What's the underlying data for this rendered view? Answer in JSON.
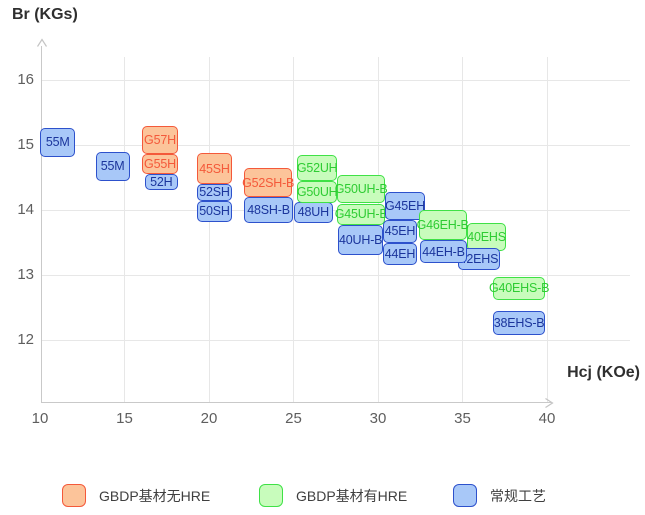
{
  "chart_data": {
    "type": "scatter",
    "mark_style": "labeled-range-boxes",
    "title": "",
    "axes": {
      "x": {
        "label": "Hcj (KOe)",
        "ticks": [
          10,
          15,
          20,
          25,
          30,
          35,
          40
        ],
        "range": [
          10,
          40
        ]
      },
      "y": {
        "label": "Br (KGs)",
        "ticks": [
          12,
          13,
          14,
          15,
          16
        ],
        "range": [
          12,
          16
        ]
      }
    },
    "grid": true,
    "series_meta": {
      "orange": {
        "legend": "GBDP基材无HRE",
        "fill": "#fcc49a",
        "border": "#f4593a",
        "text": "#f4593a"
      },
      "green": {
        "legend": "GBDP基材有HRE",
        "fill": "#c8fcbc",
        "border": "#3fe146",
        "text": "#2ecc33"
      },
      "conv": {
        "legend": "常规工艺",
        "fill": "#a8c8f8",
        "border": "#2d51cc",
        "text": "#1b359c"
      }
    },
    "points": [
      {
        "label": "55M",
        "series": "conv",
        "hcj": [
          10.0,
          12.1
        ],
        "br": [
          14.82,
          15.26
        ]
      },
      {
        "label": "55M",
        "series": "conv",
        "hcj": [
          13.3,
          15.3
        ],
        "br": [
          14.45,
          14.9
        ]
      },
      {
        "label": "52H",
        "series": "conv",
        "hcj": [
          16.2,
          18.15
        ],
        "br": [
          14.3,
          14.56
        ]
      },
      {
        "label": "G57H",
        "series": "orange",
        "hcj": [
          16.05,
          18.15
        ],
        "br": [
          14.86,
          15.3
        ]
      },
      {
        "label": "G55H",
        "series": "orange",
        "hcj": [
          16.05,
          18.15
        ],
        "br": [
          14.56,
          14.86
        ]
      },
      {
        "label": "52SH",
        "series": "conv",
        "hcj": [
          19.3,
          21.35
        ],
        "br": [
          14.14,
          14.4
        ]
      },
      {
        "label": "50SH",
        "series": "conv",
        "hcj": [
          19.3,
          21.35
        ],
        "br": [
          13.82,
          14.14
        ]
      },
      {
        "label": "45SH",
        "series": "orange",
        "hcj": [
          19.3,
          21.35
        ],
        "br": [
          14.4,
          14.87
        ]
      },
      {
        "label": "48SH-B",
        "series": "conv",
        "hcj": [
          22.1,
          24.95
        ],
        "br": [
          13.8,
          14.2
        ]
      },
      {
        "label": "G52SH-B",
        "series": "orange",
        "hcj": [
          22.1,
          24.9
        ],
        "br": [
          14.2,
          14.64
        ]
      },
      {
        "label": "48UH",
        "series": "conv",
        "hcj": [
          25.0,
          27.35
        ],
        "br": [
          13.8,
          14.13
        ]
      },
      {
        "label": "G52UH",
        "series": "green",
        "hcj": [
          25.2,
          27.6
        ],
        "br": [
          14.44,
          14.85
        ]
      },
      {
        "label": "G50UH",
        "series": "green",
        "hcj": [
          25.2,
          27.6
        ],
        "br": [
          14.1,
          14.44
        ]
      },
      {
        "label": "G50UH-B",
        "series": "green",
        "hcj": [
          27.6,
          30.4
        ],
        "br": [
          14.1,
          14.54
        ]
      },
      {
        "label": "G45UH-B",
        "series": "green",
        "hcj": [
          27.6,
          30.4
        ],
        "br": [
          13.77,
          14.1
        ]
      },
      {
        "label": "40UH-B",
        "series": "conv",
        "hcj": [
          27.65,
          30.3
        ],
        "br": [
          13.31,
          13.77
        ]
      },
      {
        "label": "G45EH",
        "series": "conv",
        "hcj": [
          30.4,
          32.8
        ],
        "br": [
          13.85,
          14.28
        ]
      },
      {
        "label": "45EH",
        "series": "conv",
        "hcj": [
          30.3,
          32.3
        ],
        "br": [
          13.49,
          13.85
        ]
      },
      {
        "label": "44EH",
        "series": "conv",
        "hcj": [
          30.3,
          32.3
        ],
        "br": [
          13.15,
          13.49
        ]
      },
      {
        "label": "40EHS",
        "series": "green",
        "hcj": [
          35.25,
          37.6
        ],
        "br": [
          13.37,
          13.8
        ]
      },
      {
        "label": "42EHS",
        "series": "conv",
        "hcj": [
          34.75,
          37.2
        ],
        "br": [
          13.08,
          13.41
        ]
      },
      {
        "label": "G46EH-B",
        "series": "green",
        "hcj": [
          32.4,
          35.25
        ],
        "br": [
          13.54,
          14.0
        ]
      },
      {
        "label": "44EH-B",
        "series": "conv",
        "hcj": [
          32.5,
          35.25
        ],
        "br": [
          13.18,
          13.54
        ]
      },
      {
        "label": "G40EHS-B",
        "series": "green",
        "hcj": [
          36.8,
          39.9
        ],
        "br": [
          12.62,
          12.97
        ]
      },
      {
        "label": "38EHS-B",
        "series": "conv",
        "hcj": [
          36.8,
          39.9
        ],
        "br": [
          12.08,
          12.44
        ]
      }
    ]
  },
  "legend": {
    "items": [
      {
        "series": "orange"
      },
      {
        "series": "green"
      },
      {
        "series": "conv"
      }
    ]
  }
}
